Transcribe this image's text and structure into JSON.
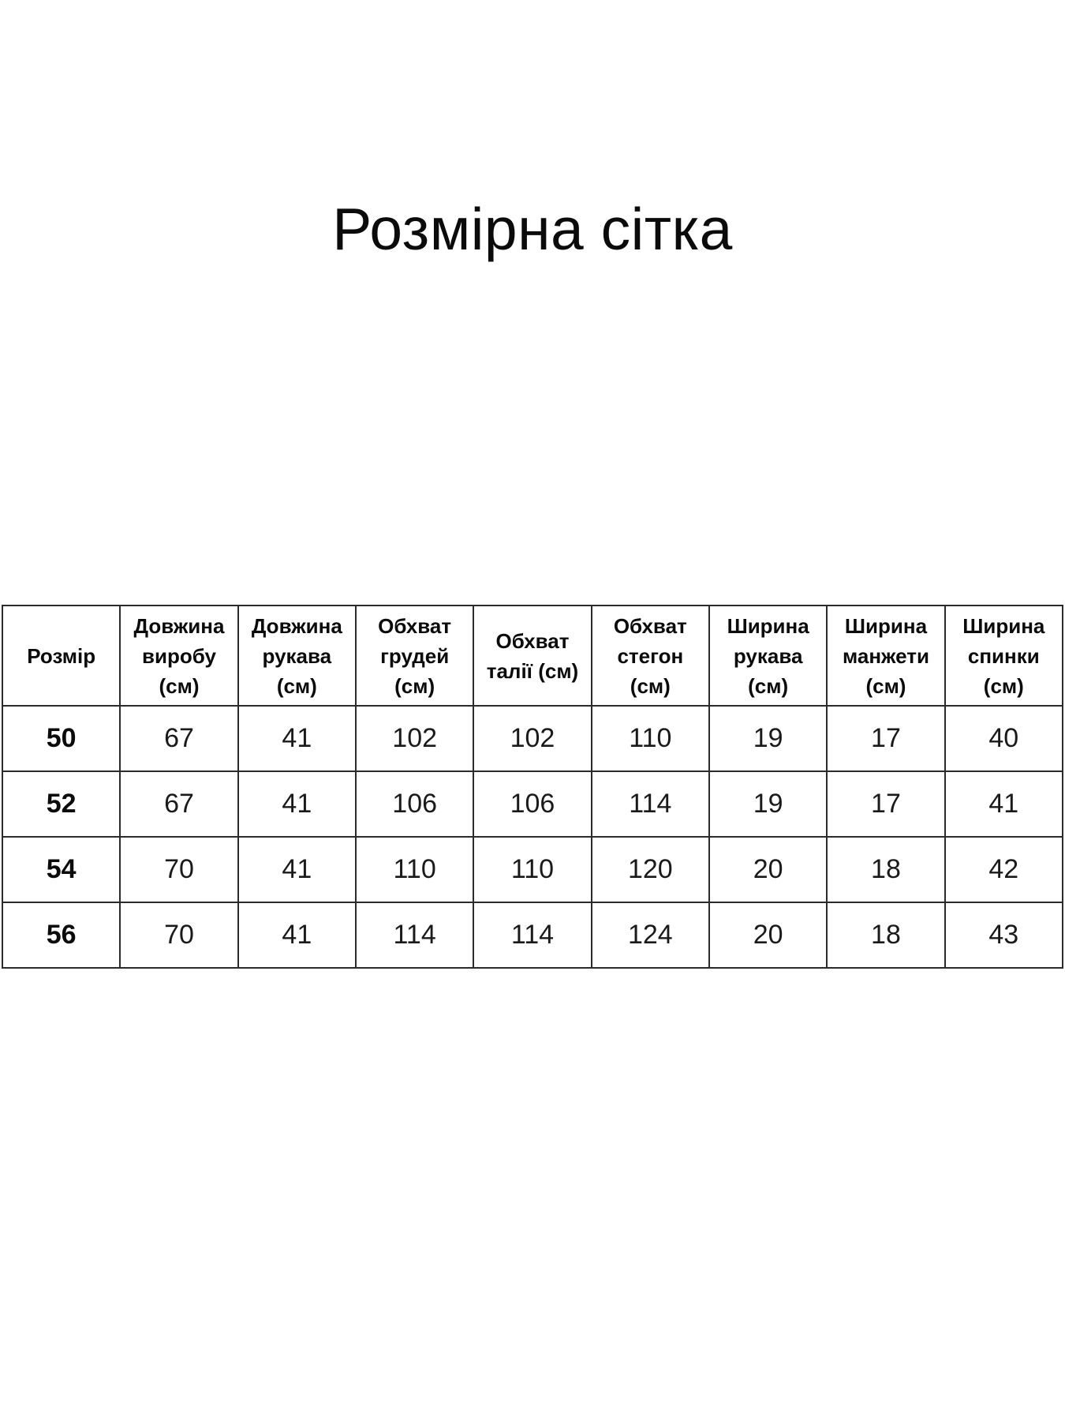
{
  "title": "Розмірна сітка",
  "table": {
    "columns": [
      {
        "label": "Розмір"
      },
      {
        "label": "Довжина\nвиробу\n(см)"
      },
      {
        "label": "Довжина\nрукава\n(см)"
      },
      {
        "label": "Обхват\nгрудей\n(см)"
      },
      {
        "label": "Обхват\nталії (см)"
      },
      {
        "label": "Обхват\nстегон\n(см)"
      },
      {
        "label": "Ширина\nрукава\n(см)"
      },
      {
        "label": "Ширина\nманжети\n(см)"
      },
      {
        "label": "Ширина\nспинки\n(см)"
      }
    ],
    "rows": [
      {
        "size": "50",
        "values": [
          "67",
          "41",
          "102",
          "102",
          "110",
          "19",
          "17",
          "40"
        ]
      },
      {
        "size": "52",
        "values": [
          "67",
          "41",
          "106",
          "106",
          "114",
          "19",
          "17",
          "41"
        ]
      },
      {
        "size": "54",
        "values": [
          "70",
          "41",
          "110",
          "110",
          "120",
          "20",
          "18",
          "42"
        ]
      },
      {
        "size": "56",
        "values": [
          "70",
          "41",
          "114",
          "114",
          "124",
          "20",
          "18",
          "43"
        ]
      }
    ]
  }
}
